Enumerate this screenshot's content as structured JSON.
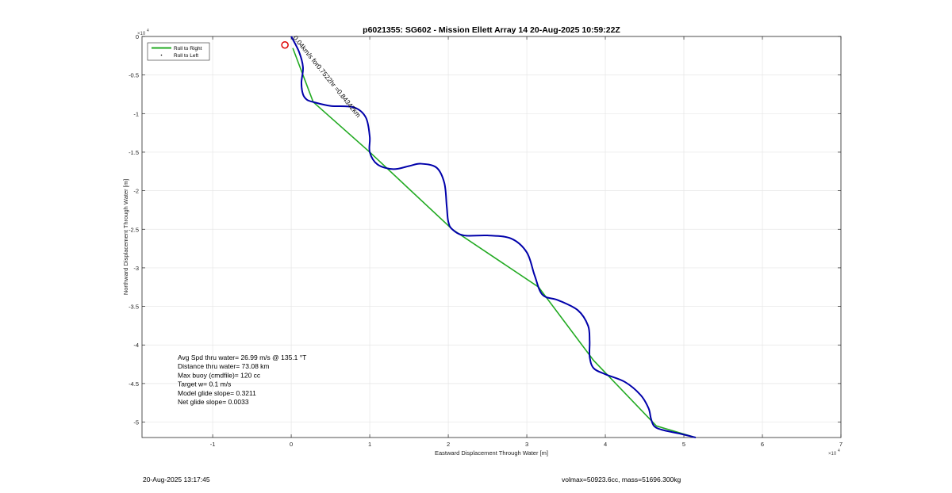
{
  "chart_data": {
    "type": "line",
    "title": "p6021355: SG602 - Mission Ellett Array 14 20-Aug-2025 10:59:22Z",
    "xlabel": "Eastward Displacement Through Water [m]",
    "ylabel": "Northward Displacement Through Water [m]",
    "x_exponent_label": "×10",
    "x_exponent_power": "4",
    "y_exponent_label": "×10",
    "y_exponent_power": "4",
    "xlim": [
      -1.9,
      7.0
    ],
    "ylim": [
      -5.2,
      0
    ],
    "x_ticks": [
      -1,
      0,
      1,
      2,
      3,
      4,
      5,
      6,
      7
    ],
    "x_tick_labels": [
      "-1",
      "0",
      "1",
      "2",
      "3",
      "4",
      "5",
      "6",
      "7"
    ],
    "y_ticks": [
      0,
      -0.5,
      -1,
      -1.5,
      -2,
      -2.5,
      -3,
      -3.5,
      -4,
      -4.5,
      -5
    ],
    "y_tick_labels": [
      "0",
      "-0.5",
      "-1",
      "-1.5",
      "-2",
      "-2.5",
      "-3",
      "-3.5",
      "-4",
      "-4.5",
      "-5"
    ],
    "grid": true,
    "legend_placement": "top-left",
    "legend": [
      {
        "name": "Roll to Right",
        "color": "#22aa22",
        "style": "line"
      },
      {
        "name": "Roll to Left",
        "color": "#000000",
        "style": "marker"
      }
    ],
    "series": [
      {
        "name": "Roll to Right",
        "color": "#22aa22",
        "x": [
          0.02,
          0.28,
          1.0,
          2.05,
          3.15,
          3.85,
          4.65,
          5.15
        ],
        "y": [
          -0.15,
          -0.85,
          -1.5,
          -2.5,
          -3.25,
          -4.2,
          -5.05,
          -5.2
        ]
      },
      {
        "name": "track",
        "color": "#0000aa",
        "x": [
          0.0,
          0.1,
          0.15,
          0.13,
          0.15,
          0.2,
          0.28,
          0.5,
          0.8,
          0.95,
          1.0,
          1.0,
          1.1,
          1.3,
          1.5,
          1.65,
          1.85,
          1.95,
          1.98,
          2.0,
          2.05,
          2.2,
          2.5,
          2.8,
          3.0,
          3.1,
          3.2,
          3.4,
          3.65,
          3.78,
          3.8,
          3.8,
          3.85,
          4.0,
          4.25,
          4.45,
          4.55,
          4.58,
          4.62,
          4.72,
          4.95,
          5.15
        ],
        "y": [
          0.0,
          -0.2,
          -0.4,
          -0.6,
          -0.75,
          -0.82,
          -0.85,
          -0.9,
          -0.92,
          -1.05,
          -1.3,
          -1.5,
          -1.66,
          -1.72,
          -1.68,
          -1.65,
          -1.7,
          -1.9,
          -2.2,
          -2.4,
          -2.5,
          -2.58,
          -2.58,
          -2.62,
          -2.8,
          -3.1,
          -3.35,
          -3.42,
          -3.55,
          -3.75,
          -3.95,
          -4.15,
          -4.3,
          -4.38,
          -4.48,
          -4.65,
          -4.82,
          -4.95,
          -5.05,
          -5.1,
          -5.15,
          -5.2
        ]
      }
    ],
    "annotations": {
      "rotated_label": "0.04km/s for0.7522hr =0.84342km",
      "start_marker": {
        "x": -0.08,
        "y": -0.11,
        "color": "#dd0000"
      }
    },
    "stats": [
      "Avg Spd thru water= 26.99 m/s @ 135.1 °T",
      "Distance thru water= 73.08 km",
      "Max buoy (cmdfile)= 120 cc",
      "Target w= 0.1 m/s",
      "Model glide slope= 0.3211",
      "Net glide slope= 0.0033"
    ]
  },
  "footer": {
    "left": "20-Aug-2025 13:17:45",
    "right": "volmax=50923.6cc, mass=51696.300kg"
  }
}
